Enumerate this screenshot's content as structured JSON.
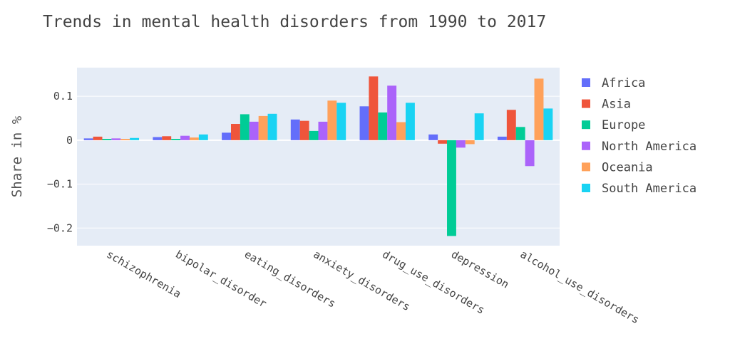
{
  "chart_data": {
    "type": "bar",
    "title": "Trends in mental health disorders from 1990 to 2017",
    "xlabel": "",
    "ylabel": "Share in %",
    "ylim": [
      -0.24,
      0.165
    ],
    "yticks": [
      0.1,
      0,
      -0.1,
      -0.2
    ],
    "ytick_labels": [
      "0.1",
      "0",
      "−0.1",
      "−0.2"
    ],
    "grid": true,
    "legend_position": "right",
    "categories": [
      "schizophrenia",
      "bipolar_disorder",
      "eating_disorders",
      "anxiety_disorders",
      "drug_use_disorders",
      "depression",
      "alcohol_use_disorders"
    ],
    "series": [
      {
        "name": "Africa",
        "color": "#636efa",
        "values": [
          0.004,
          0.007,
          0.017,
          0.047,
          0.077,
          0.013,
          0.008
        ]
      },
      {
        "name": "Asia",
        "color": "#EF553B",
        "values": [
          0.008,
          0.009,
          0.037,
          0.044,
          0.145,
          -0.008,
          0.069
        ]
      },
      {
        "name": "Europe",
        "color": "#00cc96",
        "values": [
          0.003,
          0.003,
          0.059,
          0.021,
          0.063,
          -0.218,
          0.03
        ]
      },
      {
        "name": "North America",
        "color": "#ab63fa",
        "values": [
          0.004,
          0.01,
          0.042,
          0.042,
          0.124,
          -0.017,
          -0.059
        ]
      },
      {
        "name": "Oceania",
        "color": "#FFA15A",
        "values": [
          0.003,
          0.006,
          0.055,
          0.09,
          0.041,
          -0.009,
          0.14
        ]
      },
      {
        "name": "South America",
        "color": "#19d3f3",
        "values": [
          0.005,
          0.013,
          0.06,
          0.085,
          0.085,
          0.061,
          0.072
        ]
      }
    ]
  }
}
